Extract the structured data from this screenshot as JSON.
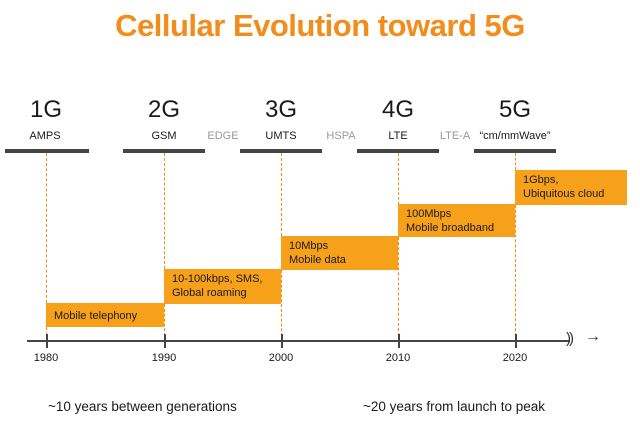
{
  "title": "Cellular Evolution toward 5G",
  "generations": [
    {
      "gen": "1G",
      "tech": "AMPS"
    },
    {
      "gen": "2G",
      "tech": "GSM"
    },
    {
      "gen": "3G",
      "tech": "UMTS"
    },
    {
      "gen": "4G",
      "tech": "LTE"
    },
    {
      "gen": "5G",
      "tech": "“cm/mmWave”"
    }
  ],
  "interim_techs": [
    "EDGE",
    "HSPA",
    "LTE-A"
  ],
  "capability_boxes": [
    {
      "line1": "Mobile telephony",
      "line2": ""
    },
    {
      "line1": "10-100kbps, SMS,",
      "line2": "Global roaming"
    },
    {
      "line1": "10Mbps",
      "line2": "Mobile data"
    },
    {
      "line1": "100Mbps",
      "line2": "Mobile broadband"
    },
    {
      "line1": "1Gbps,",
      "line2": "Ubiquitous cloud"
    }
  ],
  "timeline": {
    "years": [
      "1980",
      "1990",
      "2000",
      "2010",
      "2020"
    ],
    "break_symbol": "))",
    "arrow_symbol": "→"
  },
  "footnotes": {
    "left": "~10 years between generations",
    "right": "~20 years from launch to peak"
  },
  "colors": {
    "accent": "#f28c1b",
    "box_fill": "#f7a11a",
    "interim_text": "#999999",
    "bar": "#444444"
  }
}
